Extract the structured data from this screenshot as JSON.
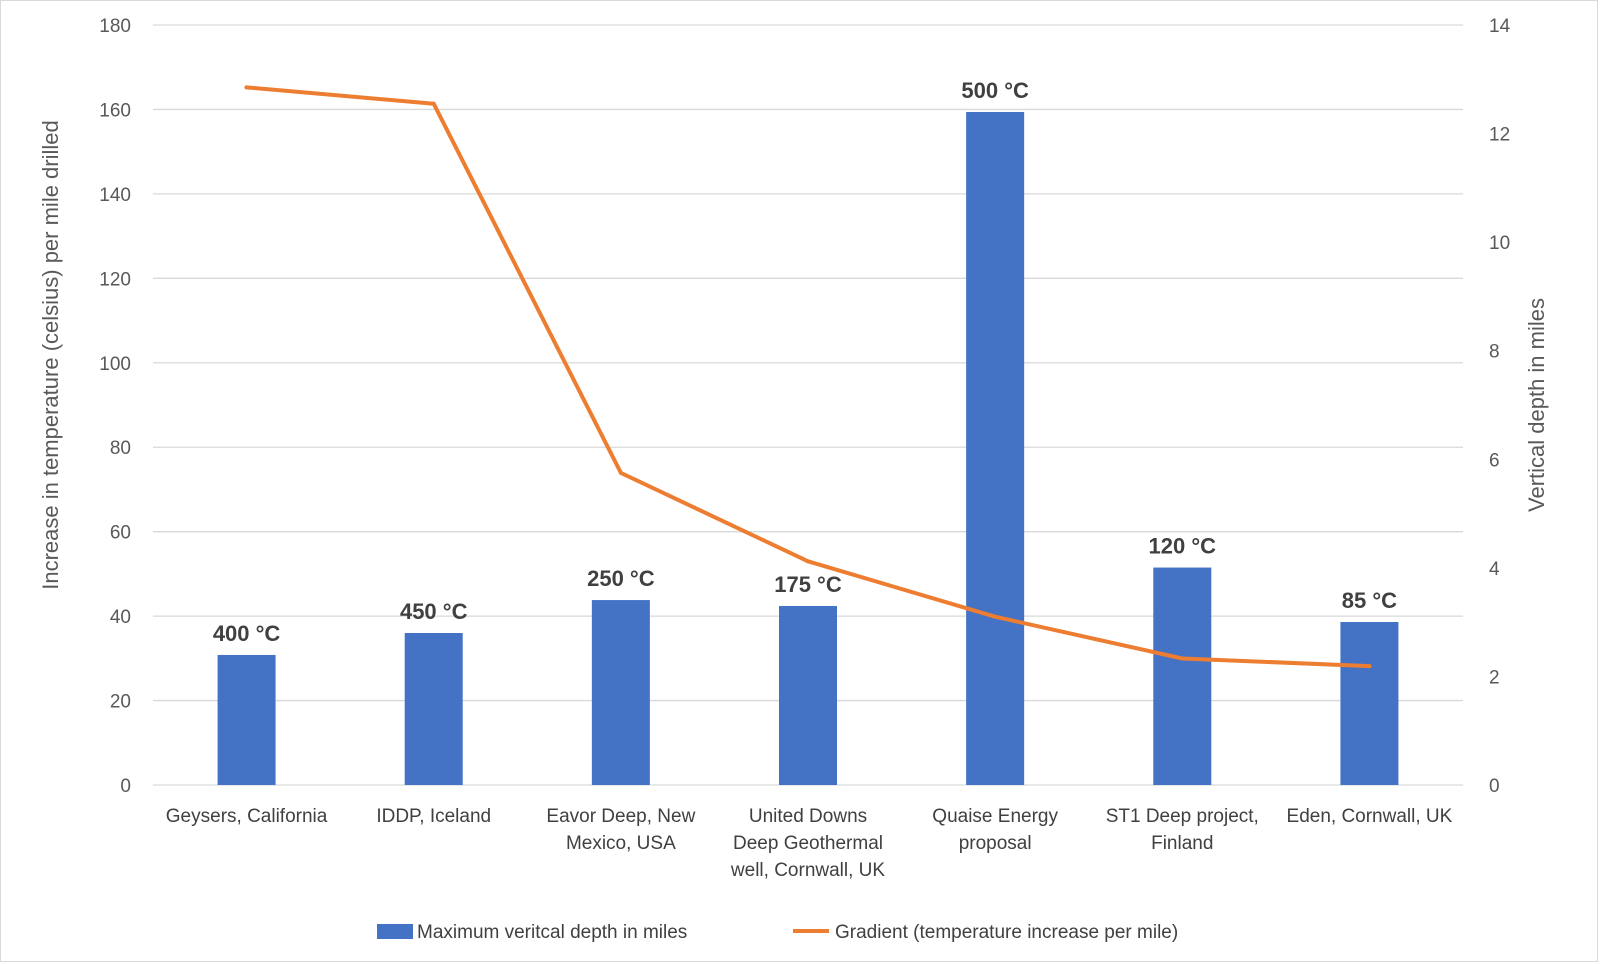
{
  "chart_data": {
    "type": "bar",
    "categories": [
      [
        "Geysers, California"
      ],
      [
        "IDDP, Iceland"
      ],
      [
        "Eavor Deep, New",
        "Mexico, USA"
      ],
      [
        "United Downs",
        "Deep Geothermal",
        "well, Cornwall, UK"
      ],
      [
        "Quaise Energy",
        "proposal"
      ],
      [
        "ST1 Deep project,",
        "Finland"
      ],
      [
        "Eden, Cornwall, UK"
      ]
    ],
    "series": [
      {
        "name": "Maximum veritcal depth in miles",
        "type": "bar",
        "axis": "left",
        "color": "#4472C4",
        "values": [
          30.8,
          36.0,
          43.8,
          42.4,
          159.4,
          51.5,
          38.6
        ],
        "data_labels": [
          "400 °C",
          "450 °C",
          "250 °C",
          "175 °C",
          "500 °C",
          "120 °C",
          "85 °C"
        ]
      },
      {
        "name": "Gradient (temperature increase per mile)",
        "type": "line",
        "axis": "right",
        "color": "#ED7D31",
        "values": [
          12.85,
          12.55,
          5.75,
          4.12,
          3.1,
          2.33,
          2.19
        ]
      }
    ],
    "ylabel": "Increase in temperature (celsius) per mile drilled",
    "y2label": "Vertical depth in miles",
    "ylim": [
      0,
      180
    ],
    "yticks": [
      "0",
      "20",
      "40",
      "60",
      "80",
      "100",
      "120",
      "140",
      "160",
      "180"
    ],
    "y2lim": [
      0,
      14
    ],
    "y2ticks": [
      "0",
      "2",
      "4",
      "6",
      "8",
      "10",
      "12",
      "14"
    ],
    "grid": true,
    "legend_position": "bottom"
  }
}
